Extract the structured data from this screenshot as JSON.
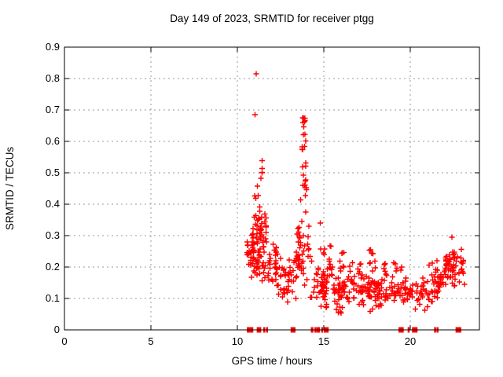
{
  "chart_data": {
    "type": "scatter",
    "title": "Day 149 of 2023, SRMTID for receiver ptgg",
    "xlabel": "GPS time / hours",
    "ylabel": "SRMTID / TECUs",
    "xlim": [
      0,
      24
    ],
    "ylim": [
      0,
      0.9
    ],
    "xticks": {
      "values": [
        0,
        5,
        10,
        15,
        20
      ],
      "labels": [
        "0",
        "5",
        "10",
        "15",
        "20"
      ]
    },
    "yticks": {
      "values": [
        0,
        0.1,
        0.2,
        0.3,
        0.4,
        0.5,
        0.6,
        0.7,
        0.8,
        0.9
      ],
      "labels": [
        "0",
        "0.1",
        "0.2",
        "0.3",
        "0.4",
        "0.5",
        "0.6",
        "0.7",
        "0.8",
        "0.9"
      ]
    },
    "grid": true,
    "marker": "plus",
    "marker_color": "#ff0000",
    "grid_color": "#9a9a9a",
    "border_color": "#000000",
    "background": "#ffffff",
    "jitter_seed": 20230149,
    "outlier_points": [
      [
        11.09,
        0.815
      ],
      [
        11.03,
        0.685
      ],
      [
        14.8,
        0.34
      ],
      [
        22.42,
        0.295
      ]
    ],
    "clusters": [
      {
        "x": [
          10.55,
          10.78
        ],
        "y": [
          0.16,
          0.31
        ],
        "n": 12,
        "dist": "mid"
      },
      {
        "x": [
          10.78,
          11.35
        ],
        "y": [
          0.15,
          0.37
        ],
        "n": 60,
        "dist": "mid"
      },
      {
        "x": [
          10.95,
          11.35
        ],
        "y": [
          0.37,
          0.47
        ],
        "n": 6,
        "dist": "uni"
      },
      {
        "x": [
          11.3,
          11.68
        ],
        "y": [
          0.15,
          0.43
        ],
        "n": 32,
        "dist": "mid"
      },
      {
        "x": [
          11.35,
          11.6
        ],
        "y": [
          0.44,
          0.54
        ],
        "n": 5,
        "dist": "uni"
      },
      {
        "x": [
          11.68,
          12.35
        ],
        "y": [
          0.12,
          0.31
        ],
        "n": 30,
        "dist": "mid"
      },
      {
        "x": [
          12.35,
          12.95
        ],
        "y": [
          0.06,
          0.27
        ],
        "n": 24,
        "dist": "mid"
      },
      {
        "x": [
          12.95,
          13.45
        ],
        "y": [
          0.08,
          0.26
        ],
        "n": 20,
        "dist": "mid"
      },
      {
        "x": [
          13.45,
          14.15
        ],
        "y": [
          0.11,
          0.4
        ],
        "n": 42,
        "dist": "mid"
      },
      {
        "x": [
          13.65,
          14.02
        ],
        "y": [
          0.4,
          0.475
        ],
        "n": 8,
        "dist": "uni"
      },
      {
        "x": [
          13.7,
          13.97
        ],
        "y": [
          0.475,
          0.55
        ],
        "n": 5,
        "dist": "uni"
      },
      {
        "x": [
          13.74,
          13.96
        ],
        "y": [
          0.555,
          0.625
        ],
        "n": 7,
        "dist": "uni"
      },
      {
        "x": [
          13.76,
          13.93
        ],
        "y": [
          0.63,
          0.688
        ],
        "n": 7,
        "dist": "uni"
      },
      {
        "x": [
          14.15,
          14.75
        ],
        "y": [
          0.1,
          0.33
        ],
        "n": 15,
        "dist": "low"
      },
      {
        "x": [
          14.78,
          15.18
        ],
        "y": [
          0.05,
          0.21
        ],
        "n": 36,
        "dist": "mid"
      },
      {
        "x": [
          14.8,
          15.05
        ],
        "y": [
          0.21,
          0.27
        ],
        "n": 4,
        "dist": "uni"
      },
      {
        "x": [
          15.2,
          15.55
        ],
        "y": [
          0.1,
          0.29
        ],
        "n": 14,
        "dist": "mid"
      },
      {
        "x": [
          15.55,
          19.75
        ],
        "y": [
          0.075,
          0.19
        ],
        "n": 160,
        "dist": "mid"
      },
      {
        "x": [
          15.9,
          16.2
        ],
        "y": [
          0.185,
          0.25
        ],
        "n": 8,
        "dist": "uni"
      },
      {
        "x": [
          16.5,
          17.15
        ],
        "y": [
          0.185,
          0.215
        ],
        "n": 7,
        "dist": "uni"
      },
      {
        "x": [
          17.6,
          18.2
        ],
        "y": [
          0.185,
          0.26
        ],
        "n": 9,
        "dist": "uni"
      },
      {
        "x": [
          18.4,
          18.85
        ],
        "y": [
          0.185,
          0.215
        ],
        "n": 5,
        "dist": "uni"
      },
      {
        "x": [
          19.0,
          19.5
        ],
        "y": [
          0.185,
          0.225
        ],
        "n": 6,
        "dist": "uni"
      },
      {
        "x": [
          15.6,
          16.1
        ],
        "y": [
          0.05,
          0.075
        ],
        "n": 6,
        "dist": "uni"
      },
      {
        "x": [
          17.2,
          18.4
        ],
        "y": [
          0.055,
          0.08
        ],
        "n": 5,
        "dist": "uni"
      },
      {
        "x": [
          19.75,
          20.15
        ],
        "y": [
          0.07,
          0.185
        ],
        "n": 14,
        "dist": "mid"
      },
      {
        "x": [
          20.15,
          21.3
        ],
        "y": [
          0.05,
          0.19
        ],
        "n": 34,
        "dist": "mid"
      },
      {
        "x": [
          20.9,
          21.3
        ],
        "y": [
          0.19,
          0.215
        ],
        "n": 3,
        "dist": "uni"
      },
      {
        "x": [
          21.3,
          22.0
        ],
        "y": [
          0.09,
          0.225
        ],
        "n": 30,
        "dist": "mid"
      },
      {
        "x": [
          22.0,
          22.6
        ],
        "y": [
          0.12,
          0.27
        ],
        "n": 46,
        "dist": "mid"
      },
      {
        "x": [
          22.6,
          23.18
        ],
        "y": [
          0.13,
          0.265
        ],
        "n": 18,
        "dist": "mid"
      }
    ],
    "zero_mark_ranges": [
      [
        10.55,
        10.92
      ],
      [
        11.12,
        11.38
      ],
      [
        11.5,
        11.58
      ],
      [
        11.66,
        11.74
      ],
      [
        13.08,
        13.36
      ],
      [
        14.25,
        14.4
      ],
      [
        14.46,
        14.54
      ],
      [
        14.58,
        14.78
      ],
      [
        14.85,
        14.96
      ],
      [
        15.0,
        15.28
      ],
      [
        19.32,
        19.62
      ],
      [
        19.85,
        19.92
      ],
      [
        20.1,
        20.42
      ],
      [
        21.38,
        21.44
      ],
      [
        21.52,
        21.58
      ],
      [
        22.62,
        22.95
      ]
    ]
  }
}
